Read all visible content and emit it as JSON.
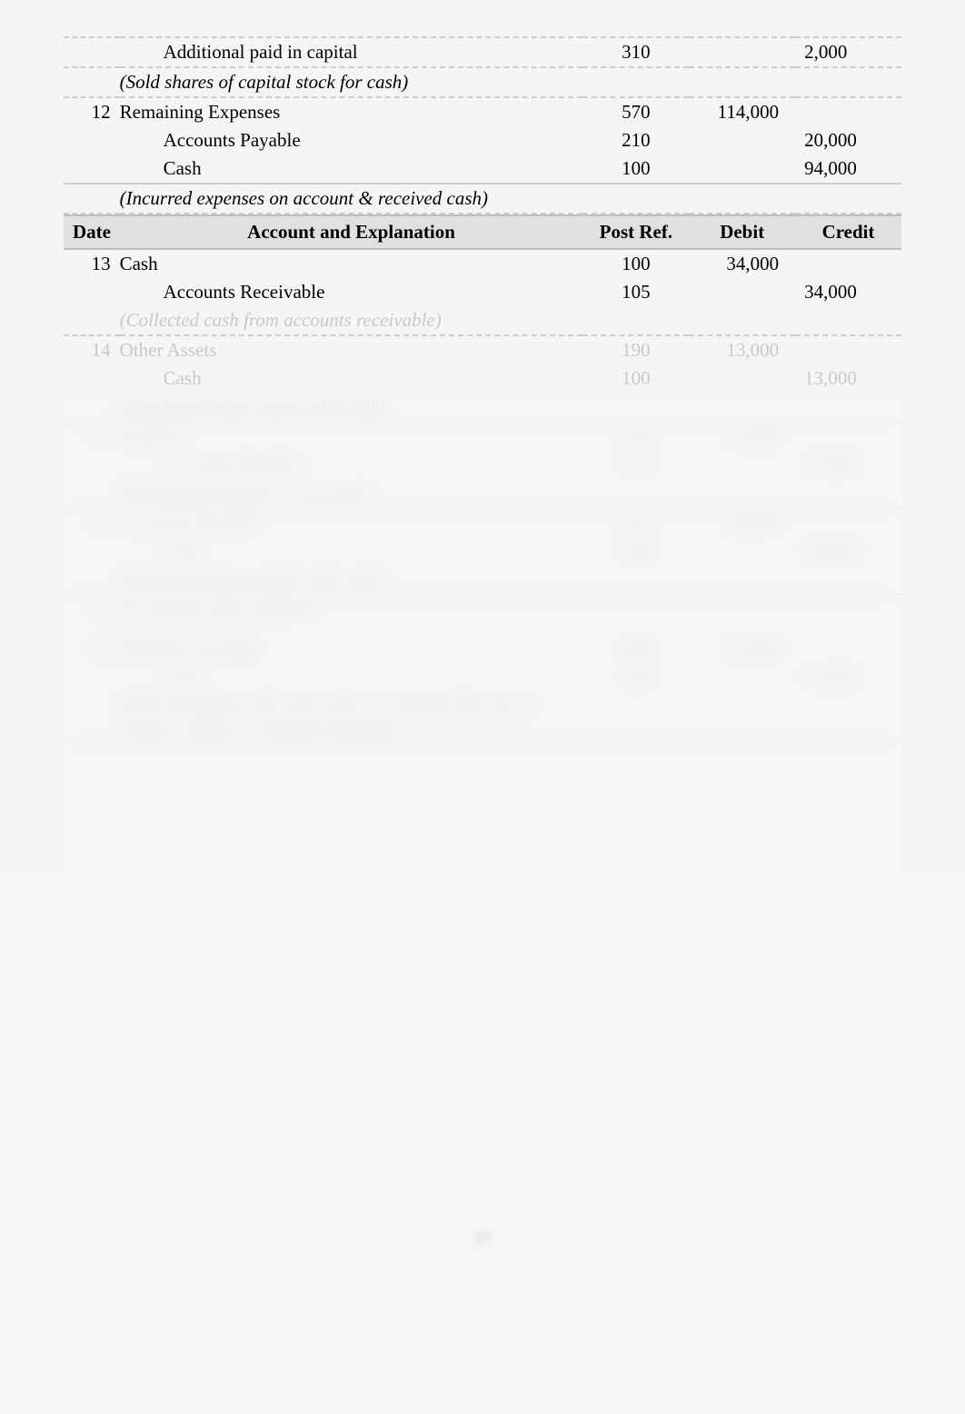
{
  "upper": [
    {
      "date": "",
      "acct": "Additional paid in capital",
      "indent": 1,
      "ref": "310",
      "debit": "",
      "credit": "2,000"
    },
    {
      "date": "",
      "acct": "(Sold shares of capital stock for cash)",
      "indent": 0,
      "italic": true,
      "ref": "",
      "debit": "",
      "credit": ""
    },
    {
      "date": "12",
      "acct": "Remaining Expenses",
      "indent": 0,
      "ref": "570",
      "debit": "114,000",
      "credit": ""
    },
    {
      "date": "",
      "acct": "Accounts Payable",
      "indent": 1,
      "ref": "210",
      "debit": "",
      "credit": "20,000"
    },
    {
      "date": "",
      "acct": "Cash",
      "indent": 1,
      "ref": "100",
      "debit": "",
      "credit": "94,000"
    },
    {
      "date": "",
      "acct": "(Incurred expenses on account & received cash)",
      "indent": 0,
      "italic": true,
      "ref": "",
      "debit": "",
      "credit": ""
    }
  ],
  "headers": {
    "date": "Date",
    "acct": "Account and Explanation",
    "ref": "Post Ref.",
    "debit": "Debit",
    "credit": "Credit"
  },
  "lower": [
    {
      "date": "13",
      "acct": "Cash",
      "indent": 0,
      "ref": "100",
      "debit": "34,000",
      "credit": ""
    },
    {
      "date": "",
      "acct": "Accounts Receivable",
      "indent": 1,
      "ref": "105",
      "debit": "",
      "credit": "34,000"
    },
    {
      "date": "",
      "acct": "(Collected cash from accounts receivable)",
      "indent": 0,
      "italic": true,
      "ref": "",
      "debit": "",
      "credit": ""
    },
    {
      "date": "14",
      "acct": "Other Assets",
      "indent": 0,
      "ref": "190",
      "debit": "13,000",
      "credit": ""
    },
    {
      "date": "",
      "acct": "Cash",
      "indent": 1,
      "ref": "100",
      "debit": "",
      "credit": "13,000"
    },
    {
      "date": "",
      "acct": "(Purchased other assets with cash)",
      "indent": 0,
      "italic": true,
      "ref": "",
      "debit": "",
      "credit": ""
    },
    {
      "date": "15",
      "acct": "Supplies",
      "indent": 0,
      "ref": "140",
      "debit": "37,000",
      "credit": ""
    },
    {
      "date": "",
      "acct": "Accounts Payable",
      "indent": 1,
      "ref": "210",
      "debit": "",
      "credit": "37,000"
    },
    {
      "date": "",
      "acct": "(Purchased supplies on account)",
      "indent": 0,
      "italic": true,
      "ref": "",
      "debit": "",
      "credit": ""
    },
    {
      "date": "16",
      "acct": "Accounts Payable",
      "indent": 0,
      "ref": "210",
      "debit": "36,000",
      "credit": ""
    },
    {
      "date": "",
      "acct": "Cash",
      "indent": 1,
      "ref": "100",
      "debit": "",
      "credit": "36,000"
    },
    {
      "date": "",
      "acct": "(Paid accounts payable with cash)",
      "indent": 0,
      "italic": true,
      "ref": "",
      "debit": "",
      "credit": ""
    },
    {
      "date": "17",
      "acct": "No journal entry required",
      "indent": 0,
      "ref": "",
      "debit": "",
      "credit": ""
    },
    {
      "date": "",
      "acct": "",
      "indent": 0,
      "ref": "",
      "debit": "",
      "credit": ""
    },
    {
      "date": "",
      "acct": "",
      "indent": 0,
      "ref": "",
      "debit": "",
      "credit": ""
    },
    {
      "date": "18",
      "acct": "Retained earnings",
      "indent": 0,
      "ref": "340",
      "debit": "15,000",
      "credit": ""
    },
    {
      "date": "",
      "acct": "Cash",
      "indent": 1,
      "ref": "100",
      "debit": "",
      "credit": "15,000"
    },
    {
      "date": "",
      "acct": "(Paid dividends with cash which is charged directly to owners' equity as retained earnings)",
      "indent": 0,
      "italic": true,
      "ref": "",
      "debit": "",
      "credit": ""
    }
  ],
  "pageNumber": "37",
  "style": {
    "bodyBg": "#f5f5f5",
    "headerBg": "#e0e0e0",
    "lineColor": "#cfcfcf",
    "dashedColor": "#d8c8c0",
    "fontFamily": "Times New Roman",
    "fontSize": 21,
    "colWidths": {
      "date": 58,
      "acct": 480,
      "ref": 110,
      "debit": 110,
      "credit": 110
    }
  }
}
